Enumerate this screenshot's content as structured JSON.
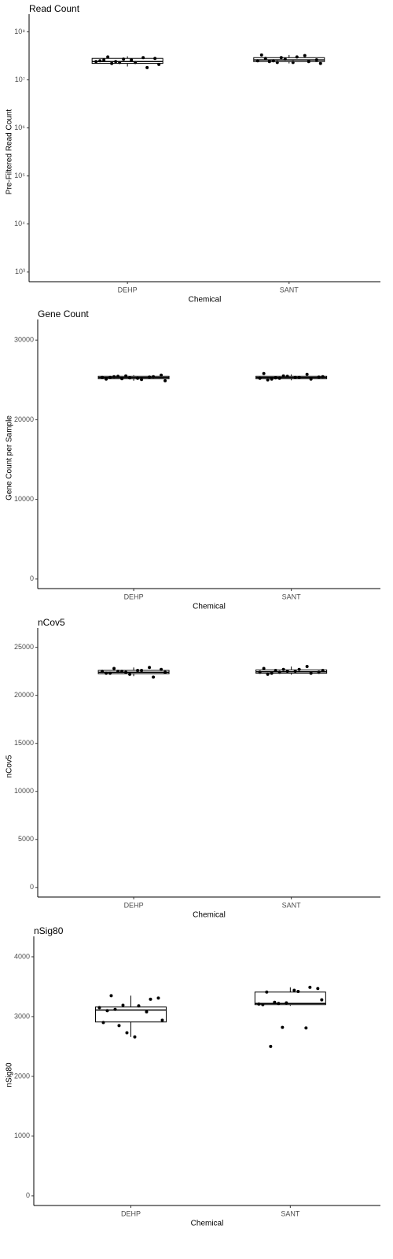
{
  "chart_data": [
    {
      "type": "box",
      "title": "Read Count",
      "xlabel": "Chemical",
      "ylabel": "Pre-Filtered Read Count",
      "log": true,
      "categories": [
        "DEHP",
        "SANT"
      ],
      "ylim": [
        630,
        160000000
      ],
      "yticks": [
        {
          "value": 1000,
          "label": "10³"
        },
        {
          "value": 10000,
          "label": "10⁴"
        },
        {
          "value": 100000,
          "label": "10⁵"
        },
        {
          "value": 1000000,
          "label": "10⁶"
        },
        {
          "value": 10000000,
          "label": "10⁷"
        },
        {
          "value": 100000000,
          "label": "10⁸"
        }
      ],
      "boxes": [
        {
          "low": 19000000,
          "q1": 22000000,
          "median": 24000000,
          "q3": 28000000,
          "high": 31000000
        },
        {
          "low": 22000000,
          "q1": 24000000,
          "median": 26000000,
          "q3": 29000000,
          "high": 33000000
        }
      ],
      "points": [
        [
          24000000,
          30000000,
          23000000,
          26000000,
          29000000,
          28000000,
          25000000,
          22000000,
          27000000,
          23000000,
          18000000,
          21000000,
          26000000,
          24000000
        ],
        [
          25000000,
          24000000,
          29000000,
          23000000,
          32000000,
          26000000,
          33000000,
          25000000,
          27000000,
          30000000,
          24000000,
          22000000,
          28000000,
          23000000
        ]
      ]
    },
    {
      "type": "box",
      "title": "Gene Count",
      "xlabel": "Chemical",
      "ylabel": "Gene Count per Sample",
      "categories": [
        "DEHP",
        "SANT"
      ],
      "ylim": [
        -1200,
        31600
      ],
      "yticks": [
        0,
        10000,
        20000,
        30000
      ],
      "boxes": [
        {
          "low": 24900,
          "q1": 25150,
          "median": 25300,
          "q3": 25450,
          "high": 25600
        },
        {
          "low": 24950,
          "q1": 25150,
          "median": 25300,
          "q3": 25450,
          "high": 25700
        }
      ],
      "points": [
        [
          25300,
          25400,
          25500,
          25200,
          25350,
          25600,
          25100,
          25450,
          25250,
          25050,
          25400,
          24900,
          25300,
          25150
        ],
        [
          25200,
          25100,
          25500,
          25300,
          25700,
          25350,
          25800,
          25250,
          25450,
          25300,
          25100,
          25400,
          25000,
          25200
        ]
      ]
    },
    {
      "type": "box",
      "title": "nCov5",
      "xlabel": "Chemical",
      "ylabel": "nCov5",
      "categories": [
        "DEHP",
        "SANT"
      ],
      "ylim": [
        -1000,
        26200
      ],
      "yticks": [
        0,
        5000,
        10000,
        15000,
        20000,
        25000
      ],
      "boxes": [
        {
          "low": 22000,
          "q1": 22250,
          "median": 22400,
          "q3": 22600,
          "high": 22900
        },
        {
          "low": 22150,
          "q1": 22300,
          "median": 22450,
          "q3": 22650,
          "high": 23000
        }
      ],
      "points": [
        [
          22500,
          22800,
          22400,
          22600,
          22900,
          22700,
          22300,
          22500,
          22200,
          22600,
          21900,
          22400,
          22300,
          22500
        ],
        [
          22400,
          22300,
          22700,
          22500,
          23000,
          22400,
          22800,
          22600,
          22500,
          22700,
          22300,
          22600,
          22200,
          22400
        ]
      ]
    },
    {
      "type": "box",
      "title": "nSig80",
      "xlabel": "Chemical",
      "ylabel": "nSig80",
      "categories": [
        "DEHP",
        "SANT"
      ],
      "ylim": [
        -160,
        4210
      ],
      "yticks": [
        0,
        1000,
        2000,
        3000,
        4000
      ],
      "boxes": [
        {
          "low": 2660,
          "q1": 2910,
          "median": 3110,
          "q3": 3160,
          "high": 3350
        },
        {
          "low": 3180,
          "q1": 3200,
          "median": 3220,
          "q3": 3410,
          "high": 3490
        }
      ],
      "points": [
        [
          3150,
          3350,
          3190,
          2660,
          3080,
          3310,
          2900,
          3120,
          2730,
          3180,
          3290,
          2940,
          3100,
          2850
        ],
        [
          3210,
          2500,
          2820,
          3440,
          2810,
          3470,
          3200,
          3240,
          3230,
          3420,
          3490,
          3280,
          3410,
          3220
        ]
      ]
    }
  ]
}
